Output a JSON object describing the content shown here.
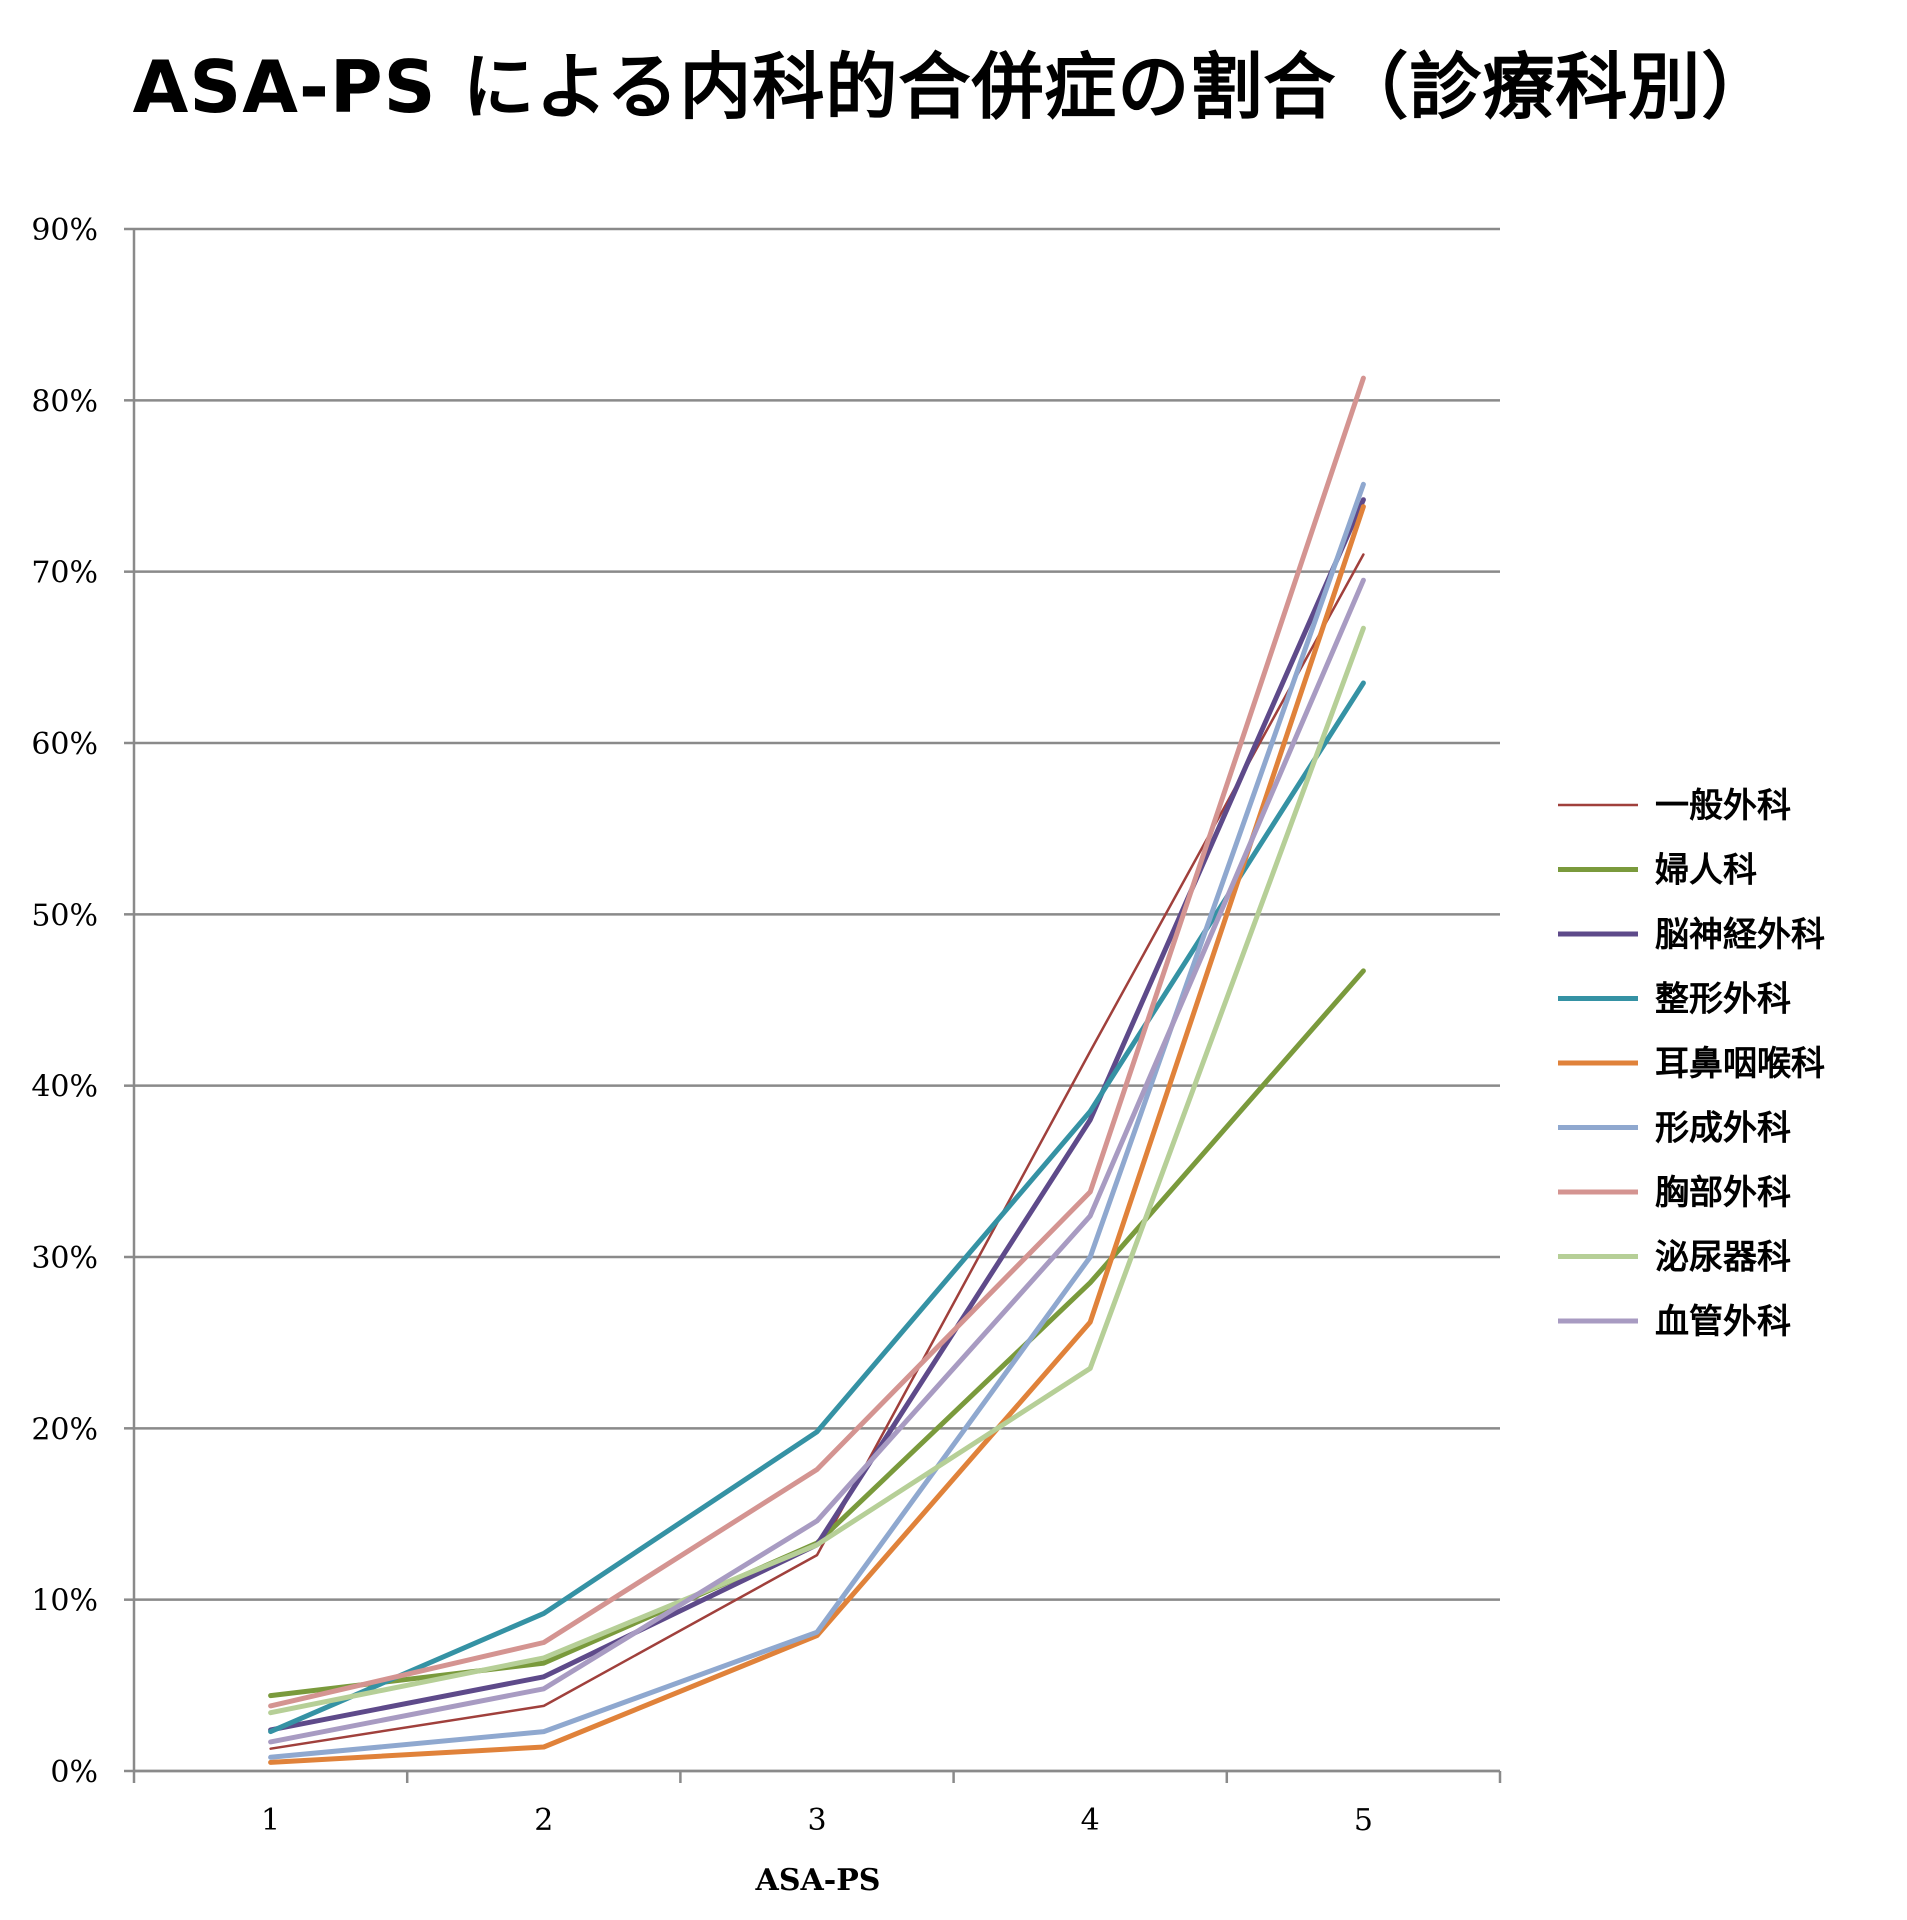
{
  "chart_data": {
    "type": "line",
    "title": "ASA-PS による内科的合併症の割合（診療科別）",
    "xlabel": "ASA-PS",
    "ylabel": "",
    "categories": [
      "1",
      "2",
      "3",
      "4",
      "5"
    ],
    "ylim": [
      0,
      0.9
    ],
    "yticks": [
      "0%",
      "10%",
      "20%",
      "30%",
      "40%",
      "50%",
      "60%",
      "70%",
      "80%",
      "90%"
    ],
    "grid": true,
    "legend_position": "right",
    "series": [
      {
        "name": "一般外科",
        "color": "#a0403c",
        "weight": "thin",
        "values": [
          0.013,
          0.038,
          0.126,
          0.42,
          0.71
        ]
      },
      {
        "name": "婦人科",
        "color": "#7a9a3c",
        "weight": "normal",
        "values": [
          0.044,
          0.063,
          0.133,
          0.285,
          0.467
        ]
      },
      {
        "name": "脳神経外科",
        "color": "#5e4a8a",
        "weight": "normal",
        "values": [
          0.024,
          0.055,
          0.132,
          0.38,
          0.742
        ]
      },
      {
        "name": "整形外科",
        "color": "#3592a4",
        "weight": "normal",
        "values": [
          0.023,
          0.092,
          0.198,
          0.385,
          0.635
        ]
      },
      {
        "name": "耳鼻咽喉科",
        "color": "#e0823a",
        "weight": "normal",
        "values": [
          0.005,
          0.014,
          0.079,
          0.262,
          0.738
        ]
      },
      {
        "name": "形成外科",
        "color": "#8fa8cf",
        "weight": "normal",
        "values": [
          0.008,
          0.023,
          0.081,
          0.3,
          0.751
        ]
      },
      {
        "name": "胸部外科",
        "color": "#d49491",
        "weight": "normal",
        "values": [
          0.038,
          0.075,
          0.176,
          0.338,
          0.813
        ]
      },
      {
        "name": "泌尿器科",
        "color": "#b6cf97",
        "weight": "normal",
        "values": [
          0.034,
          0.066,
          0.132,
          0.235,
          0.667
        ]
      },
      {
        "name": "血管外科",
        "color": "#a89bc2",
        "weight": "normal",
        "values": [
          0.017,
          0.048,
          0.146,
          0.324,
          0.695
        ]
      }
    ]
  }
}
